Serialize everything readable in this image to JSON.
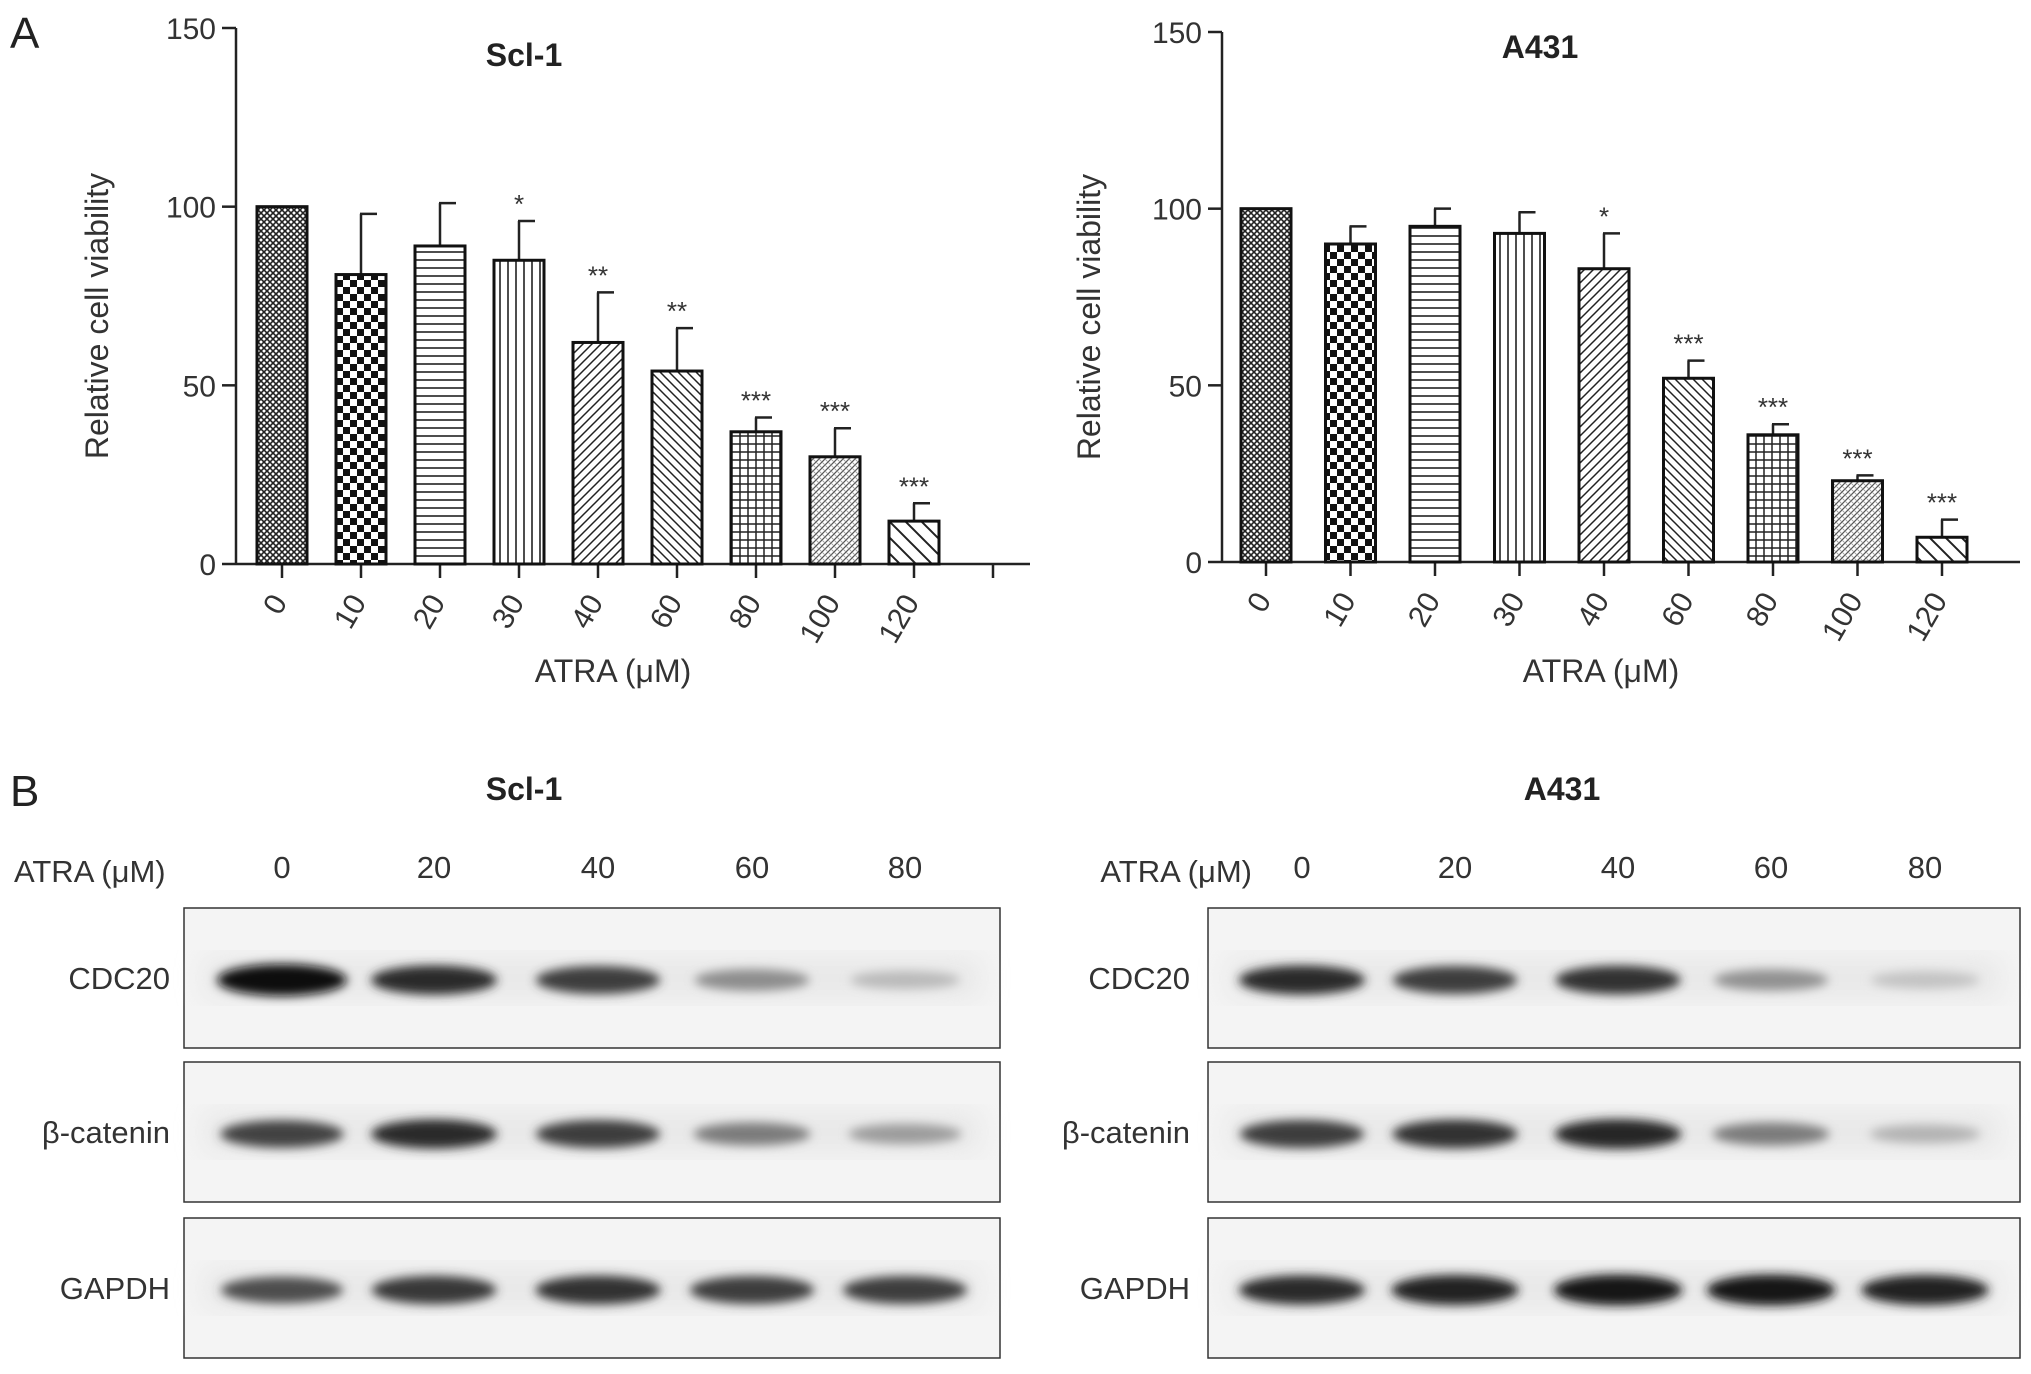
{
  "panels": {
    "a_label": "A",
    "b_label": "B"
  },
  "chart_data": [
    {
      "type": "bar",
      "title": "Scl-1",
      "xlabel": "ATRA (μM)",
      "ylabel": "Relative cell viability",
      "ylim": [
        0,
        150
      ],
      "yticks": [
        0,
        50,
        100,
        150
      ],
      "grid": false,
      "categories": [
        "0",
        "10",
        "20",
        "30",
        "40",
        "60",
        "80",
        "100",
        "120"
      ],
      "values": [
        100,
        81,
        89,
        85,
        62,
        54,
        37,
        30,
        12
      ],
      "errors": [
        0,
        17,
        12,
        11,
        14,
        12,
        4,
        8,
        5
      ],
      "significance": [
        "",
        "",
        "",
        "*",
        "**",
        "**",
        "***",
        "***",
        "***"
      ],
      "patterns": [
        "dense-cross",
        "checker",
        "hlines",
        "vlines",
        "diag-right",
        "diag-left",
        "grid",
        "fine-diag",
        "wide-diag"
      ]
    },
    {
      "type": "bar",
      "title": "A431",
      "xlabel": "ATRA (μM)",
      "ylabel": "Relative cell viability",
      "ylim": [
        0,
        150
      ],
      "yticks": [
        0,
        50,
        100,
        150
      ],
      "grid": false,
      "categories": [
        "0",
        "10",
        "20",
        "30",
        "40",
        "60",
        "80",
        "100",
        "120"
      ],
      "values": [
        100,
        90,
        95,
        93,
        83,
        52,
        36,
        23,
        7
      ],
      "errors": [
        0,
        5,
        5,
        6,
        10,
        5,
        3,
        1.5,
        5
      ],
      "significance": [
        "",
        "",
        "",
        "",
        "*",
        "***",
        "***",
        "***",
        "***"
      ],
      "patterns": [
        "dense-cross",
        "checker",
        "hlines",
        "vlines",
        "diag-right",
        "diag-left",
        "grid",
        "fine-diag",
        "wide-diag"
      ]
    }
  ],
  "western_blots": [
    {
      "title": "Scl-1",
      "treatment_label": "ATRA (μM)",
      "lanes": [
        "0",
        "20",
        "40",
        "60",
        "80"
      ],
      "rows": [
        {
          "protein": "CDC20",
          "intensity": [
            1.0,
            0.85,
            0.78,
            0.42,
            0.22
          ]
        },
        {
          "protein": "β-catenin",
          "intensity": [
            0.75,
            0.85,
            0.78,
            0.5,
            0.35
          ]
        },
        {
          "protein": "GAPDH",
          "intensity": [
            0.7,
            0.8,
            0.82,
            0.78,
            0.78
          ]
        }
      ]
    },
    {
      "title": "A431",
      "treatment_label": "ATRA (μM)",
      "lanes": [
        "0",
        "20",
        "40",
        "60",
        "80"
      ],
      "rows": [
        {
          "protein": "CDC20",
          "intensity": [
            0.85,
            0.78,
            0.82,
            0.4,
            0.18
          ]
        },
        {
          "protein": "β-catenin",
          "intensity": [
            0.78,
            0.82,
            0.88,
            0.5,
            0.25
          ]
        },
        {
          "protein": "GAPDH",
          "intensity": [
            0.85,
            0.9,
            0.95,
            0.95,
            0.9
          ]
        }
      ]
    }
  ]
}
